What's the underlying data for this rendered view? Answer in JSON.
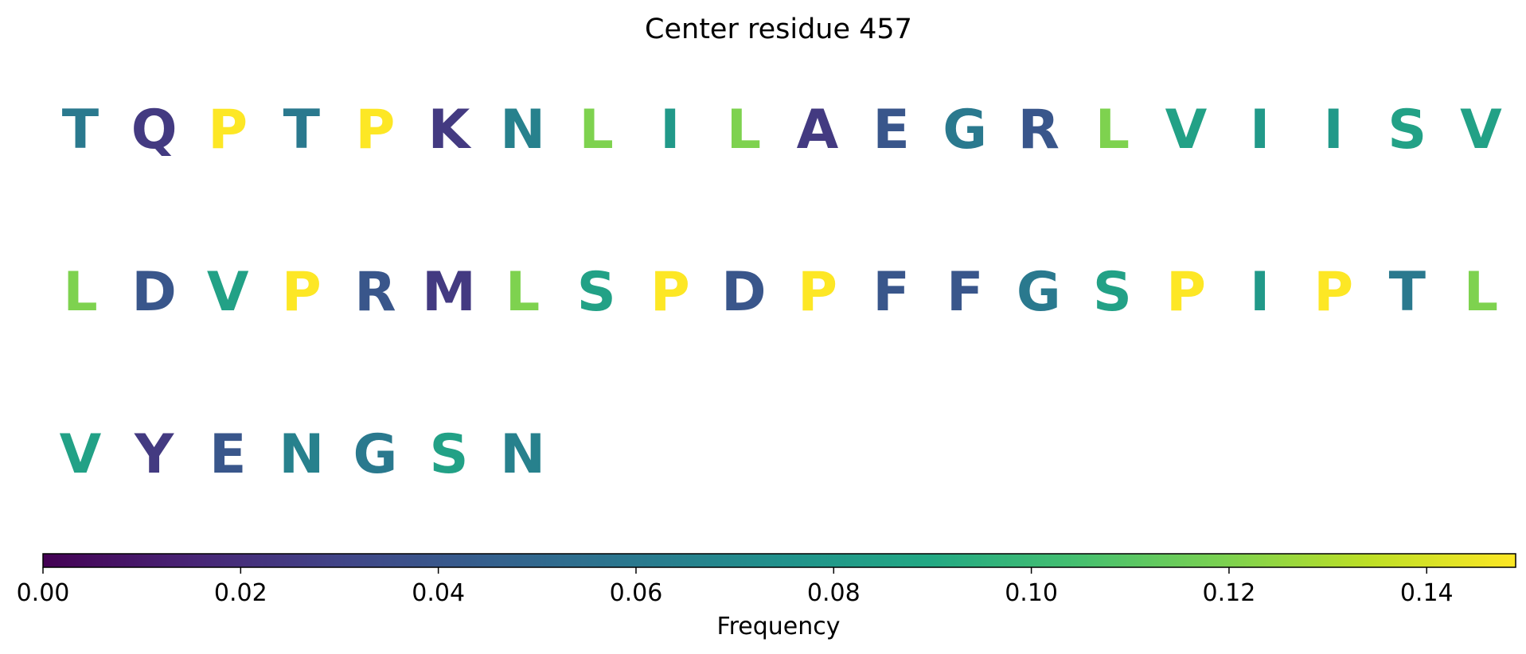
{
  "chart_data": {
    "type": "sequence-logo",
    "title": "Center residue 457",
    "residues": [
      {
        "aa": "T",
        "freq": 0.06
      },
      {
        "aa": "Q",
        "freq": 0.025
      },
      {
        "aa": "P",
        "freq": 0.15
      },
      {
        "aa": "T",
        "freq": 0.06
      },
      {
        "aa": "P",
        "freq": 0.15
      },
      {
        "aa": "K",
        "freq": 0.025
      },
      {
        "aa": "N",
        "freq": 0.065
      },
      {
        "aa": "L",
        "freq": 0.12
      },
      {
        "aa": "I",
        "freq": 0.08
      },
      {
        "aa": "L",
        "freq": 0.12
      },
      {
        "aa": "A",
        "freq": 0.025
      },
      {
        "aa": "E",
        "freq": 0.04
      },
      {
        "aa": "G",
        "freq": 0.06
      },
      {
        "aa": "R",
        "freq": 0.04
      },
      {
        "aa": "L",
        "freq": 0.12
      },
      {
        "aa": "V",
        "freq": 0.085
      },
      {
        "aa": "I",
        "freq": 0.08
      },
      {
        "aa": "I",
        "freq": 0.08
      },
      {
        "aa": "S",
        "freq": 0.085
      },
      {
        "aa": "V",
        "freq": 0.085
      },
      {
        "aa": "L",
        "freq": 0.12
      },
      {
        "aa": "D",
        "freq": 0.04
      },
      {
        "aa": "V",
        "freq": 0.085
      },
      {
        "aa": "P",
        "freq": 0.15
      },
      {
        "aa": "R",
        "freq": 0.04
      },
      {
        "aa": "M",
        "freq": 0.025
      },
      {
        "aa": "L",
        "freq": 0.12
      },
      {
        "aa": "S",
        "freq": 0.085
      },
      {
        "aa": "P",
        "freq": 0.15
      },
      {
        "aa": "D",
        "freq": 0.04
      },
      {
        "aa": "P",
        "freq": 0.15
      },
      {
        "aa": "F",
        "freq": 0.04
      },
      {
        "aa": "F",
        "freq": 0.04
      },
      {
        "aa": "G",
        "freq": 0.06
      },
      {
        "aa": "S",
        "freq": 0.085
      },
      {
        "aa": "P",
        "freq": 0.15
      },
      {
        "aa": "I",
        "freq": 0.08
      },
      {
        "aa": "P",
        "freq": 0.15
      },
      {
        "aa": "T",
        "freq": 0.06
      },
      {
        "aa": "L",
        "freq": 0.12
      },
      {
        "aa": "V",
        "freq": 0.085
      },
      {
        "aa": "Y",
        "freq": 0.025
      },
      {
        "aa": "E",
        "freq": 0.04
      },
      {
        "aa": "N",
        "freq": 0.065
      },
      {
        "aa": "G",
        "freq": 0.06
      },
      {
        "aa": "S",
        "freq": 0.085
      },
      {
        "aa": "N",
        "freq": 0.065
      }
    ],
    "residues_per_row": 20,
    "colorbar": {
      "colormap": "viridis",
      "range": [
        0,
        0.149
      ],
      "ticks": [
        "0.00",
        "0.02",
        "0.04",
        "0.06",
        "0.08",
        "0.10",
        "0.12",
        "0.14"
      ],
      "label": "Frequency"
    }
  }
}
